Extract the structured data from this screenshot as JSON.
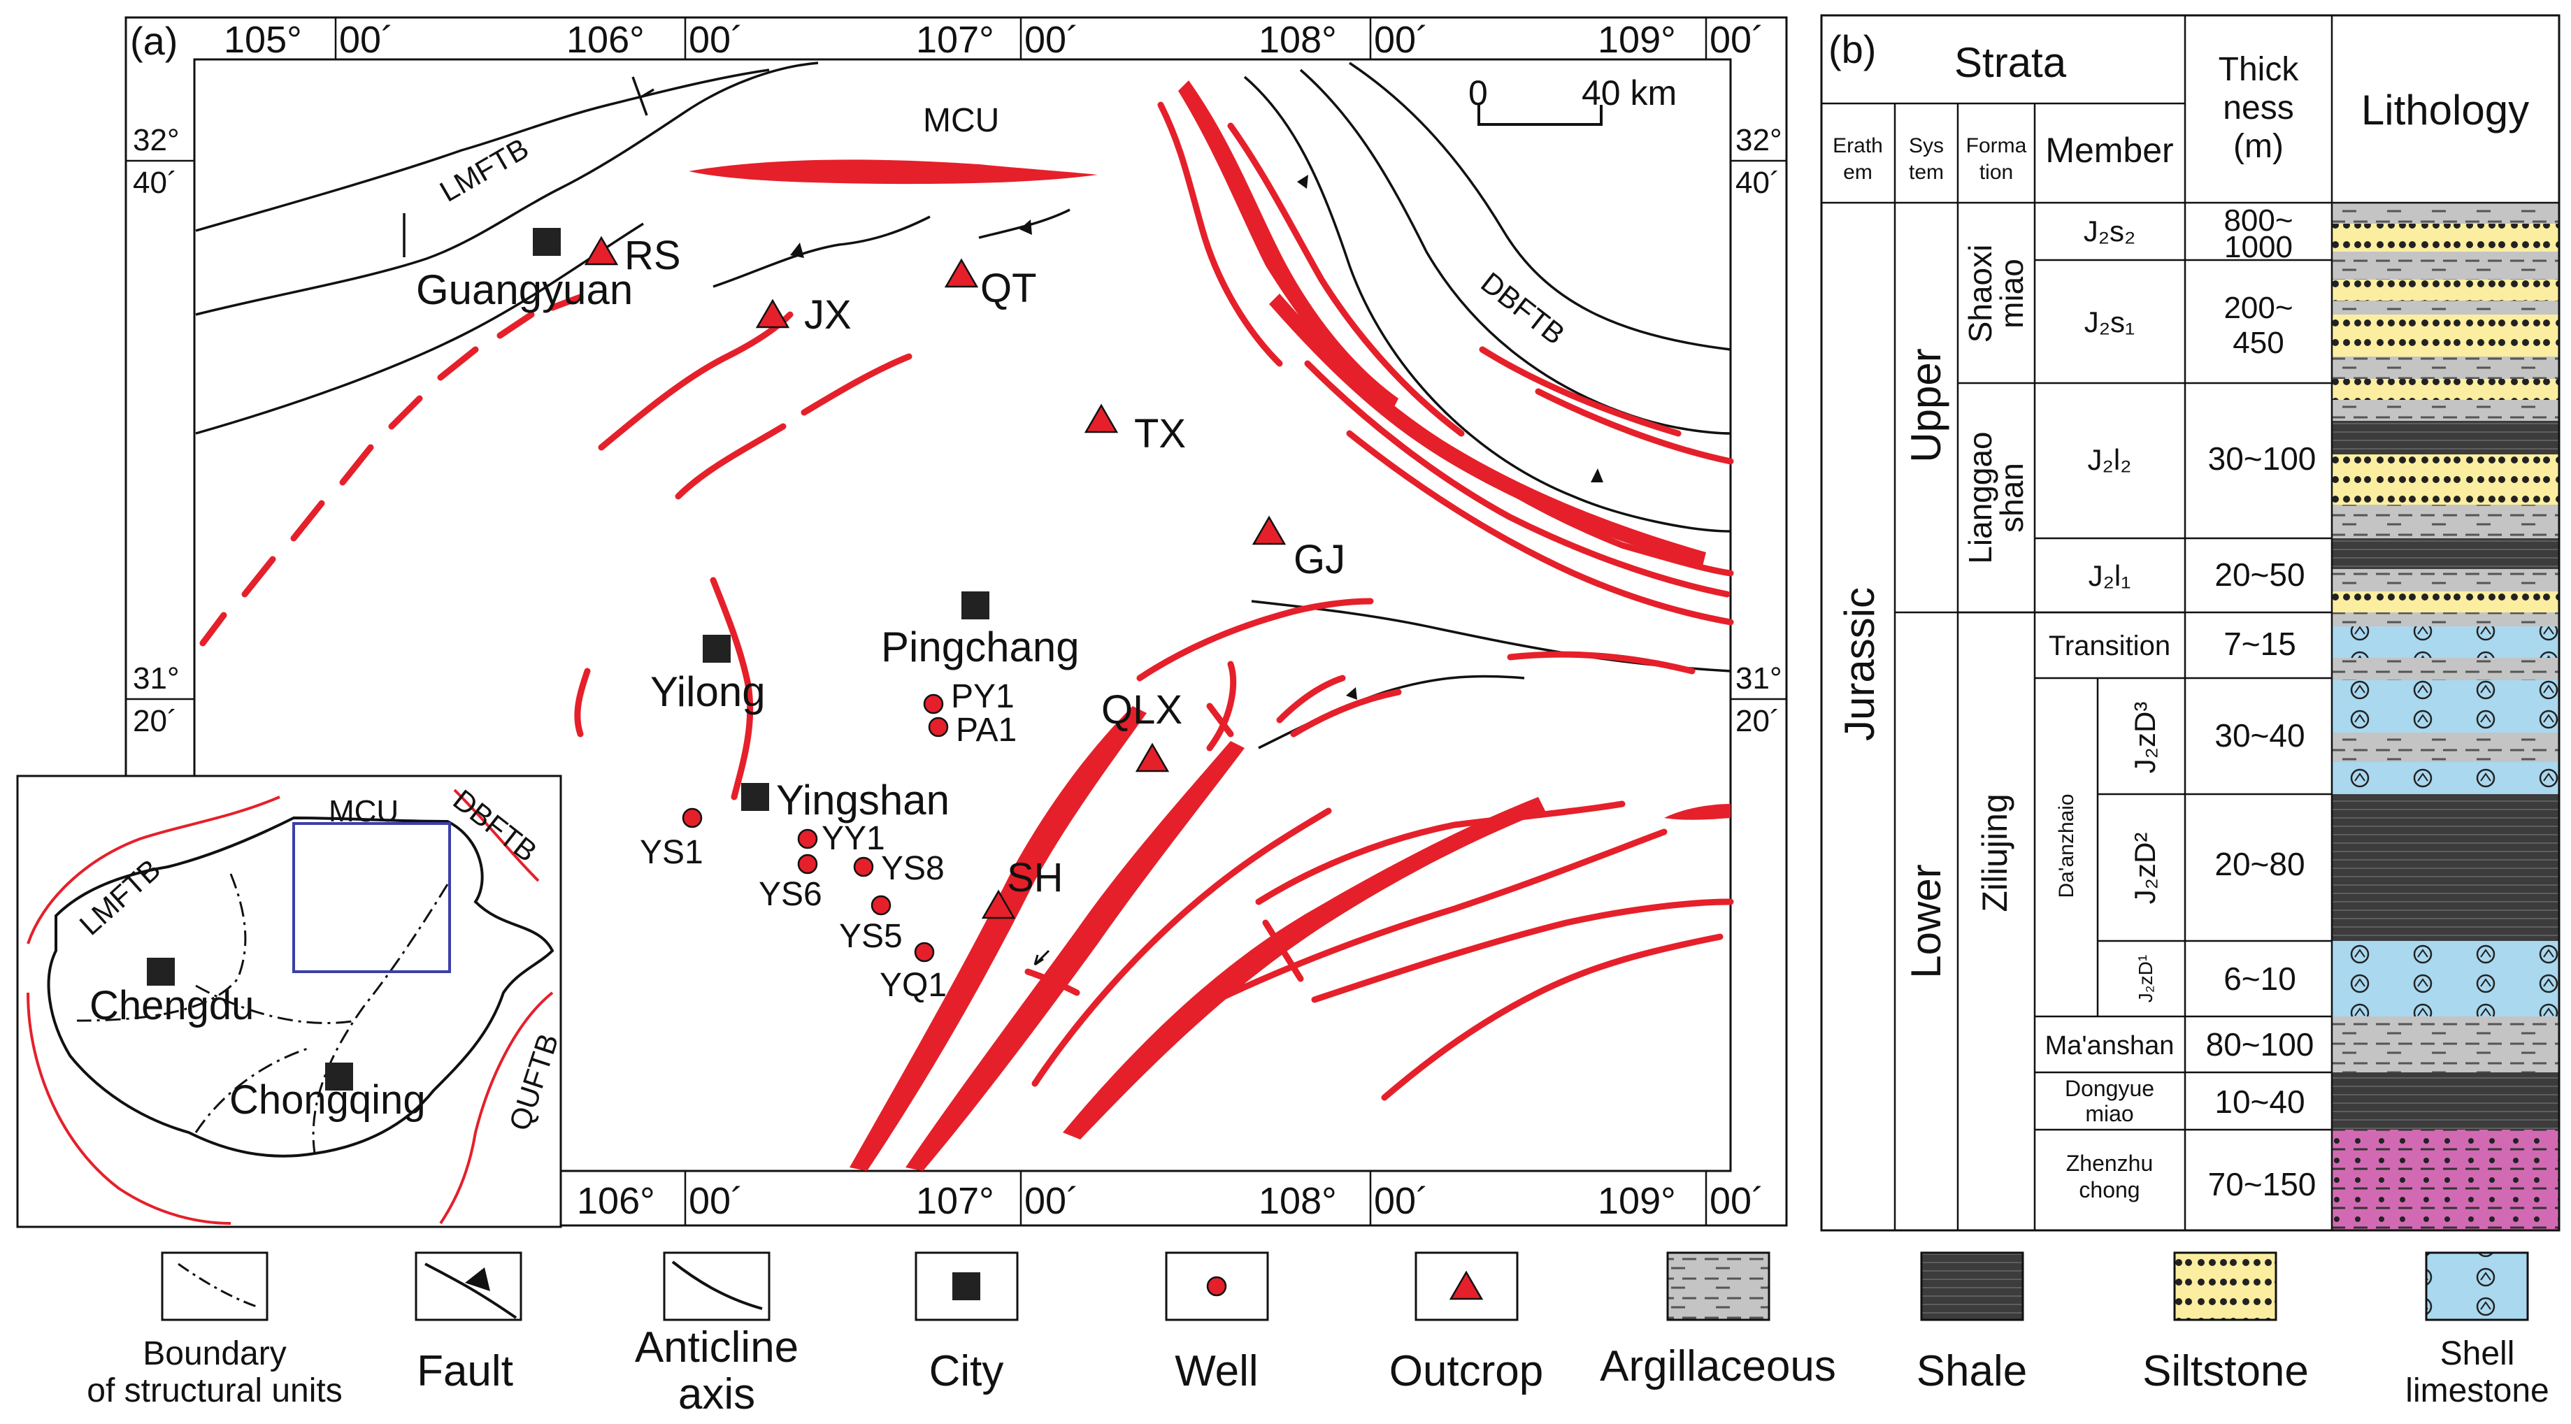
{
  "panel_a": {
    "label": "(a)",
    "lon_top": [
      "105°",
      "00´",
      "106°",
      "00´",
      "107°",
      "00´",
      "108°",
      "00´",
      "109°",
      "00´"
    ],
    "lon_bottom": [
      "106°",
      "00´",
      "107°",
      "00´",
      "108°",
      "00´",
      "109°",
      "00´"
    ],
    "lat_left": [
      "32°",
      "40´",
      "31°",
      "20´"
    ],
    "lat_right": [
      "32°",
      "40´",
      "31°",
      "20´"
    ],
    "scale": {
      "zero": "0",
      "end": "40 km"
    },
    "regions": {
      "mcu": "MCU",
      "lmftb": "LMFTB",
      "dbftb": "DBFTB"
    },
    "cities": [
      {
        "name": "Guangyuan"
      },
      {
        "name": "Yilong"
      },
      {
        "name": "Pingchang"
      },
      {
        "name": "Yingshan"
      }
    ],
    "outcrops": [
      "RS",
      "JX",
      "QT",
      "TX",
      "GJ",
      "QLX",
      "SH"
    ],
    "wells": [
      "PY1",
      "PA1",
      "YS1",
      "YY1",
      "YS8",
      "YS6",
      "YS5",
      "YQ1"
    ],
    "inset": {
      "mcu": "MCU",
      "lmftb": "LMFTB",
      "dbftb": "DBFTB",
      "quftb": "QUFTB",
      "city1": "Chengdu",
      "city2": "Chongqing"
    }
  },
  "panel_b": {
    "label": "(b)",
    "header": {
      "strata": "Strata",
      "thick1": "Thick",
      "thick2": "ness",
      "thick3": "(m)",
      "lithology": "Lithology",
      "erath1": "Erath",
      "erath2": "em",
      "sys1": "Sys",
      "sys2": "tem",
      "form1": "Forma",
      "form2": "tion",
      "member": "Member"
    },
    "erathem": "Jurassic",
    "systems": [
      "Upper",
      "Lower"
    ],
    "formations": {
      "shaoxi1": "Shaoxi",
      "shaoxi2": "miao",
      "liang1": "Lianggao",
      "liang2": "shan",
      "ziliujing": "Ziliujing",
      "daanzhaio": "Da'anzhaio"
    },
    "members": [
      {
        "name": "J₂s₂",
        "thickness": "800~",
        "thickness2": "1000"
      },
      {
        "name": "J₂s₁",
        "thickness": "200~",
        "thickness2": "450"
      },
      {
        "name": "J₂l₂",
        "thickness": "30~100",
        "thickness2": ""
      },
      {
        "name": "J₂l₁",
        "thickness": "20~50",
        "thickness2": ""
      },
      {
        "name": "Transition",
        "thickness": "7~15",
        "thickness2": ""
      },
      {
        "name": "J₂zD³",
        "thickness": "30~40",
        "thickness2": ""
      },
      {
        "name": "J₂zD²",
        "thickness": "20~80",
        "thickness2": ""
      },
      {
        "name": "J₂zD¹",
        "thickness": "6~10",
        "thickness2": ""
      },
      {
        "name": "Ma'anshan",
        "thickness": "80~100",
        "thickness2": ""
      },
      {
        "name": "Dongyue",
        "name2": "miao",
        "thickness": "10~40",
        "thickness2": ""
      },
      {
        "name": "Zhenzhu",
        "name2": "chong",
        "thickness": "70~150",
        "thickness2": ""
      }
    ]
  },
  "legend": [
    {
      "label1": "Boundary",
      "label2": "of structural units"
    },
    {
      "label1": "Fault",
      "label2": ""
    },
    {
      "label1": "Anticline",
      "label2": "axis"
    },
    {
      "label1": "City",
      "label2": ""
    },
    {
      "label1": "Well",
      "label2": ""
    },
    {
      "label1": "Outcrop",
      "label2": ""
    },
    {
      "label1": "Argillaceous",
      "label2": ""
    },
    {
      "label1": "Shale",
      "label2": ""
    },
    {
      "label1": "Siltstone",
      "label2": ""
    },
    {
      "label1": "Shell",
      "label2": "limestone"
    }
  ],
  "colors": {
    "anticline": "#e5202a",
    "siltstone": "#fbeea0",
    "shell_limestone": "#a9d8ef",
    "argillaceous": "#c4c4c4",
    "shale": "#3c3c3c",
    "zhenzhuchong": "#d26ab3",
    "inset_frame": "#3b3fa8"
  }
}
